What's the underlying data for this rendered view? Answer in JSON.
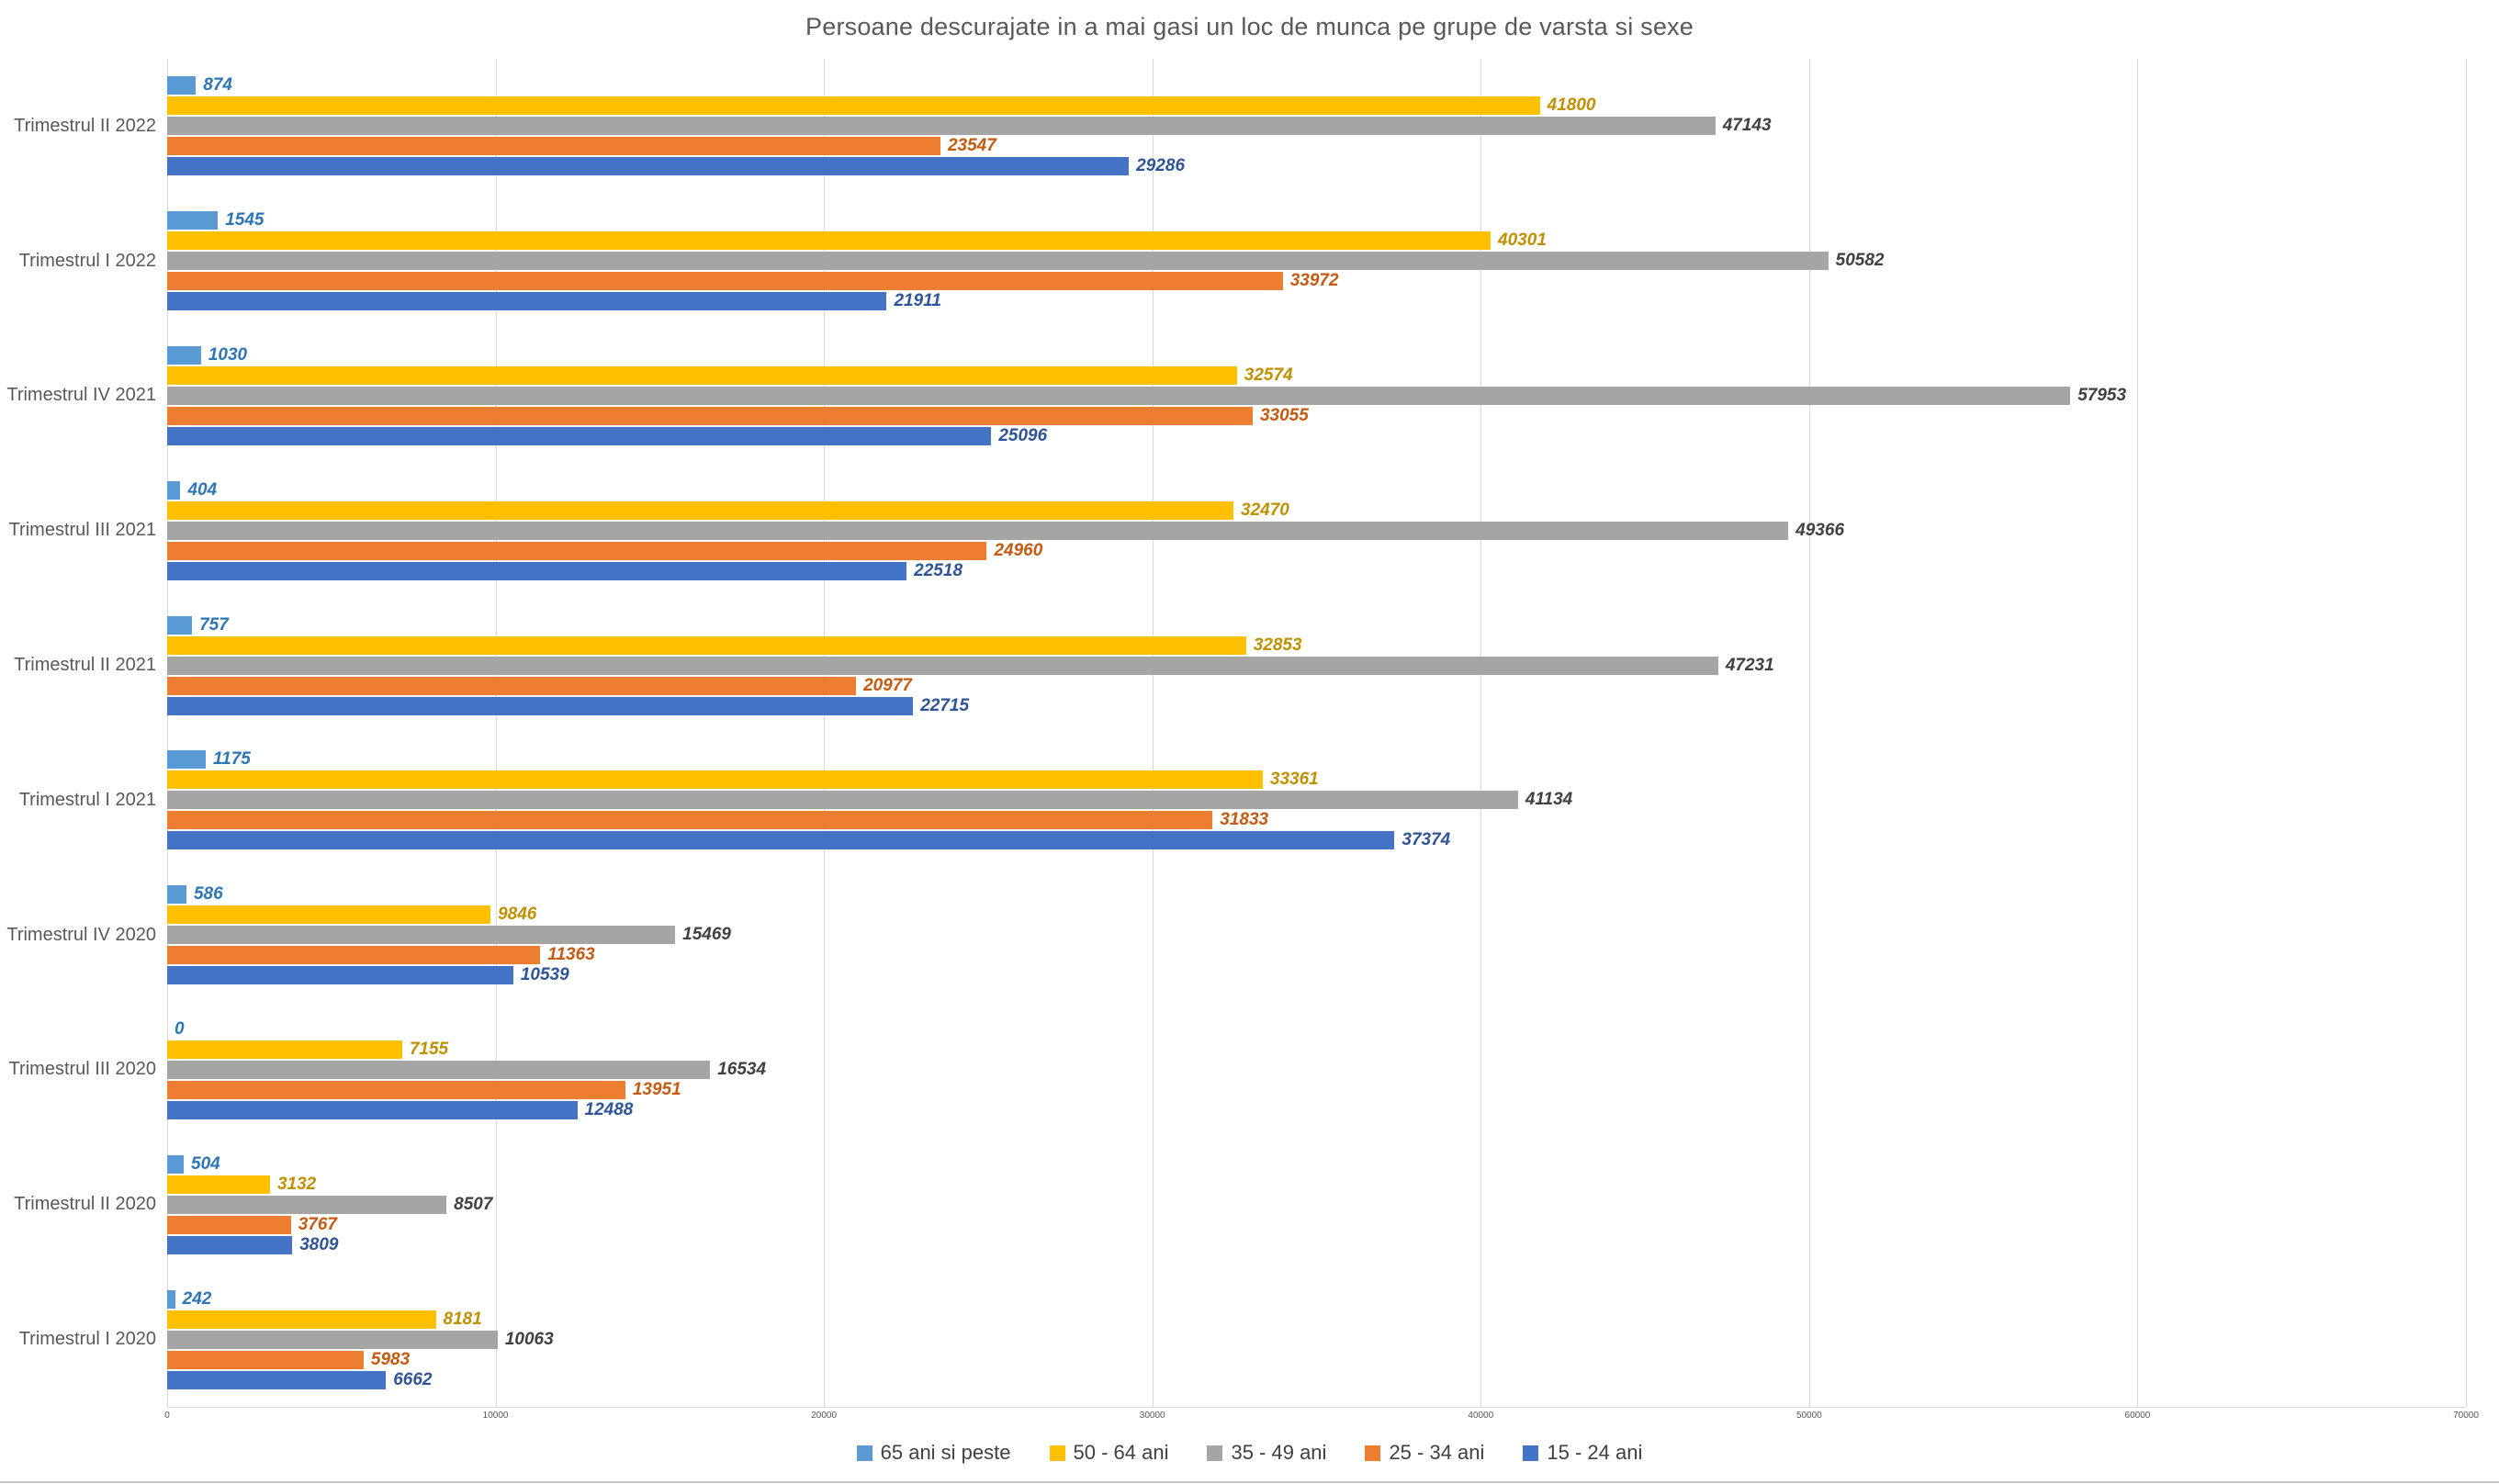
{
  "chart_data": {
    "type": "bar",
    "orientation": "horizontal",
    "title": "Persoane descurajate in a mai gasi un loc de munca pe grupe de varsta si sexe",
    "categories": [
      "Trimestrul II 2022",
      "Trimestrul I 2022",
      "Trimestrul IV 2021",
      "Trimestrul III 2021",
      "Trimestrul II 2021",
      "Trimestrul I 2021",
      "Trimestrul IV 2020",
      "Trimestrul III 2020",
      "Trimestrul II 2020",
      "Trimestrul I 2020"
    ],
    "series": [
      {
        "name": "65 ani si peste",
        "color": "#5B9BD5",
        "label_color": "#2E75B6",
        "values": [
          874,
          1545,
          1030,
          404,
          757,
          1175,
          586,
          0,
          504,
          242
        ]
      },
      {
        "name": "50 - 64 ani",
        "color": "#FFC000",
        "label_color": "#BF9000",
        "values": [
          41800,
          40301,
          32574,
          32470,
          32853,
          33361,
          9846,
          7155,
          3132,
          8181
        ]
      },
      {
        "name": "35 - 49 ani",
        "color": "#A5A5A5",
        "label_color": "#404040",
        "values": [
          47143,
          50582,
          57953,
          49366,
          47231,
          41134,
          15469,
          16534,
          8507,
          10063
        ]
      },
      {
        "name": "25 - 34 ani",
        "color": "#ED7D31",
        "label_color": "#C55A11",
        "values": [
          23547,
          33972,
          33055,
          24960,
          20977,
          31833,
          11363,
          13951,
          3767,
          5983
        ]
      },
      {
        "name": "15 - 24 ani",
        "color": "#4472C4",
        "label_color": "#2F5597",
        "values": [
          29286,
          21911,
          25096,
          22518,
          22715,
          37374,
          10539,
          12488,
          3809,
          6662
        ]
      }
    ],
    "xlim": [
      0,
      70000
    ],
    "x_ticks": [
      "0",
      "10000",
      "20000",
      "30000",
      "40000",
      "50000",
      "60000",
      "70000"
    ],
    "grid": "vertical-only",
    "legend_position": "bottom",
    "colors": {
      "background": "#FFFFFF",
      "gridline": "#D9D9D9",
      "title_text": "#595959",
      "category_text": "#595959",
      "tick_text": "#595959",
      "legend_text": "#404040"
    }
  }
}
